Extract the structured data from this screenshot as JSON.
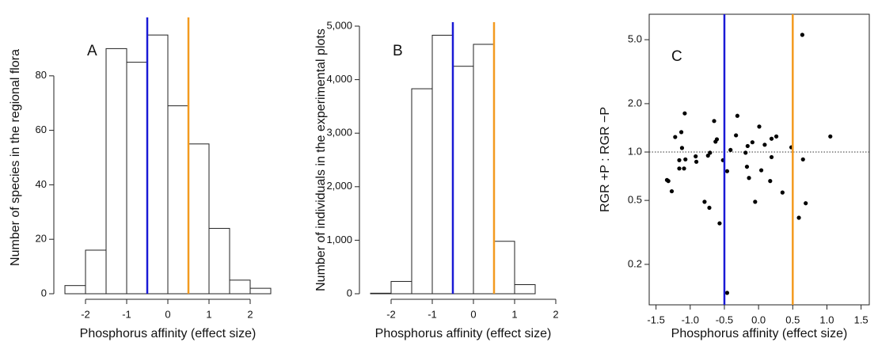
{
  "chart_data": [
    {
      "type": "histogram",
      "panel_label": "A",
      "xlabel": "Phosphorus affinity (effect size)",
      "ylabel": "Number of species in the regional flora",
      "bins": [
        -2.5,
        -2,
        -1.5,
        -1,
        -0.5,
        0,
        0.5,
        1,
        1.5,
        2,
        2.5
      ],
      "values": [
        3,
        16,
        90,
        85,
        95,
        69,
        55,
        24,
        5,
        2
      ],
      "xlim": [
        -2.5,
        2.5
      ],
      "xticks": [
        -2,
        -1,
        0,
        1,
        2
      ],
      "ylim": [
        0,
        100
      ],
      "yticks": [
        0,
        20,
        40,
        60,
        80
      ],
      "vlines": [
        {
          "x": -0.5,
          "color": "#1a1ad6"
        },
        {
          "x": 0.5,
          "color": "#f39a1f"
        }
      ]
    },
    {
      "type": "histogram",
      "panel_label": "B",
      "xlabel": "Phosphorus affinity (effect size)",
      "ylabel": "Number of individuals in the experimental plots",
      "bins": [
        -2.5,
        -2,
        -1.5,
        -1,
        -0.5,
        0,
        0.5,
        1,
        1.5,
        2
      ],
      "values": [
        10,
        230,
        3830,
        4830,
        4250,
        4660,
        980,
        170,
        0
      ],
      "xlim": [
        -2.5,
        2
      ],
      "xticks": [
        -2,
        -1,
        0,
        1,
        2
      ],
      "ylim": [
        0,
        5000
      ],
      "yticks": [
        0,
        {
          "value": 1000,
          "label": "1,000"
        },
        {
          "value": 2000,
          "label": "2,000"
        },
        {
          "value": 3000,
          "label": "3,000"
        },
        {
          "value": 4000,
          "label": "4,000"
        },
        {
          "value": 5000,
          "label": "5,000"
        }
      ],
      "vlines": [
        {
          "x": -0.5,
          "color": "#1a1ad6"
        },
        {
          "x": 0.5,
          "color": "#f39a1f"
        }
      ]
    },
    {
      "type": "scatter",
      "panel_label": "C",
      "xlabel": "Phosphorus affinity (effect size)",
      "ylabel": "RGR +P : RGR −P",
      "x": [
        -1.34,
        -1.32,
        -1.27,
        -1.22,
        -1.16,
        -1.16,
        -1.13,
        -1.12,
        -1.09,
        -1.08,
        -1.07,
        -0.91,
        -0.92,
        -0.79,
        -0.72,
        -0.74,
        -0.71,
        -0.63,
        -0.61,
        -0.65,
        -0.57,
        -0.52,
        -0.46,
        -0.46,
        -0.41,
        -0.31,
        -0.33,
        -0.19,
        -0.17,
        -0.16,
        -0.14,
        -0.09,
        -0.05,
        0.01,
        0.04,
        0.09,
        0.17,
        0.19,
        0.19,
        0.26,
        0.35,
        0.48,
        0.59,
        0.64,
        0.65,
        0.69,
        1.05
      ],
      "y": [
        0.67,
        0.66,
        0.57,
        1.24,
        0.89,
        0.79,
        1.33,
        1.06,
        0.79,
        1.74,
        0.9,
        0.87,
        0.94,
        0.49,
        0.45,
        0.95,
        0.99,
        1.16,
        1.2,
        1.56,
        0.36,
        0.89,
        0.76,
        0.133,
        1.03,
        1.68,
        1.27,
        0.99,
        0.81,
        1.09,
        0.69,
        1.15,
        0.49,
        1.44,
        0.77,
        1.11,
        0.66,
        0.93,
        1.21,
        1.25,
        0.56,
        1.07,
        0.39,
        5.36,
        0.9,
        0.48,
        1.25
      ],
      "xlim": [
        -1.6,
        1.62
      ],
      "xticks": [
        -1.5,
        {
          "value": -1,
          "label": "-1.0"
        },
        -0.5,
        {
          "value": 0,
          "label": "0.0"
        },
        0.5,
        {
          "value": 1,
          "label": "1.0"
        },
        1.5
      ],
      "ylim": [
        0.112,
        7.2
      ],
      "ylog": true,
      "yticks": [
        0.2,
        0.5,
        {
          "value": 1,
          "label": "1.0"
        },
        {
          "value": 2,
          "label": "2.0"
        },
        {
          "value": 5,
          "label": "5.0"
        }
      ],
      "hline": 1,
      "color": "#000000",
      "vlines": [
        {
          "x": -0.5,
          "color": "#1a1ad6"
        },
        {
          "x": 0.5,
          "color": "#f39a1f"
        }
      ]
    }
  ]
}
